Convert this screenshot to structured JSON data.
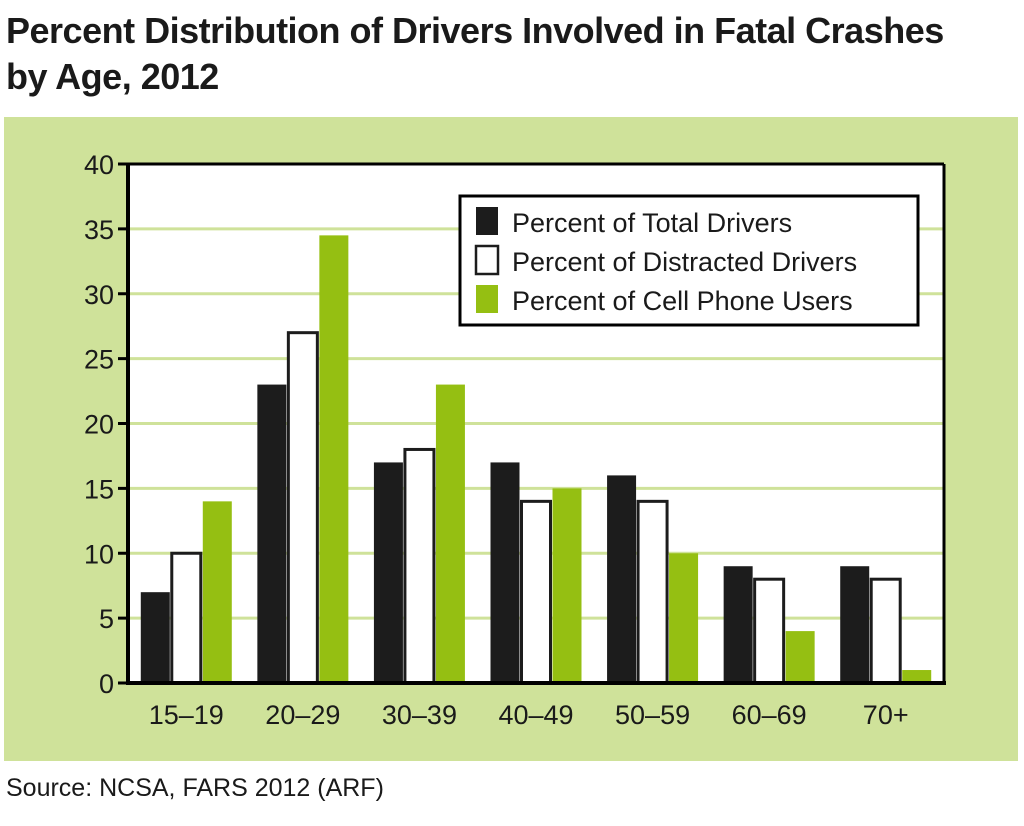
{
  "title_line1": "Percent Distribution of Drivers Involved in Fatal Crashes",
  "title_line2": "by Age, 2012",
  "source": "Source: NCSA, FARS 2012 (ARF)",
  "colors": {
    "panel_background": "#cfe29a",
    "gridline": "#cfe29a",
    "total_drivers": "#1c1c1c",
    "distracted_drivers": "#ffffff",
    "cell_phone_users": "#95bf12"
  },
  "chart_data": {
    "type": "bar",
    "title": "Percent Distribution of Drivers Involved in Fatal Crashes by Age, 2012",
    "xlabel": "",
    "ylabel": "",
    "ylim": [
      0,
      40
    ],
    "yticks": [
      0,
      5,
      10,
      15,
      20,
      25,
      30,
      35,
      40
    ],
    "grid": true,
    "legend_position": "top-right",
    "categories": [
      "15–19",
      "20–29",
      "30–39",
      "40–49",
      "50–59",
      "60–69",
      "70+"
    ],
    "series": [
      {
        "name": "Percent of Total Drivers",
        "color": "#1c1c1c",
        "values": [
          7,
          23,
          17,
          17,
          16,
          9,
          9
        ]
      },
      {
        "name": "Percent of Distracted Drivers",
        "color": "#ffffff",
        "values": [
          10,
          27,
          18,
          14,
          14,
          8,
          8
        ]
      },
      {
        "name": "Percent of Cell Phone Users",
        "color": "#95bf12",
        "values": [
          14,
          34.5,
          23,
          15,
          10,
          4,
          1
        ]
      }
    ]
  }
}
